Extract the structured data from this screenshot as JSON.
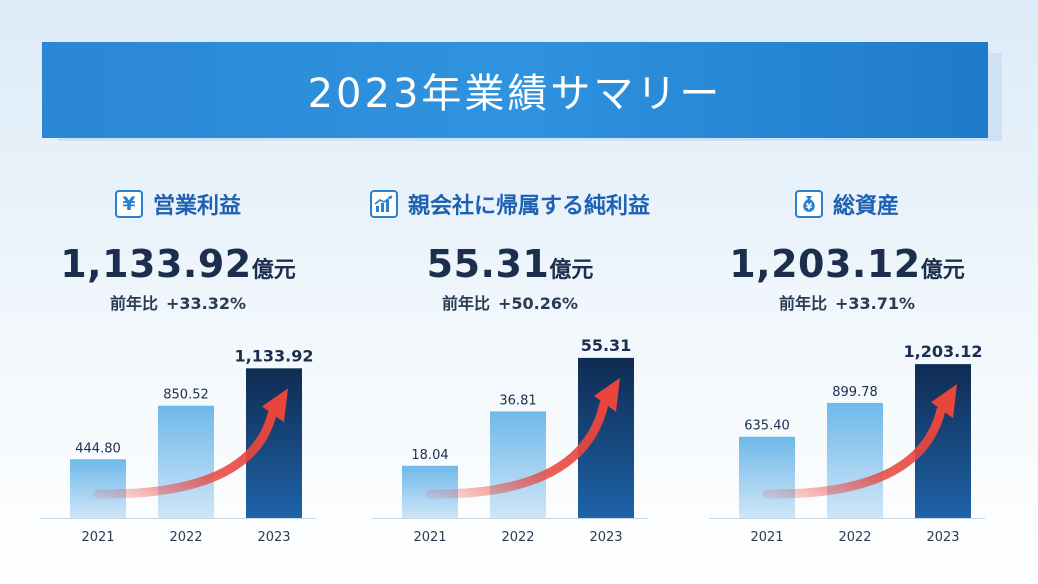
{
  "header": {
    "title": "2023年業績サマリー"
  },
  "chart_data": [
    {
      "type": "bar",
      "title": "営業利益",
      "icon": "yen-icon",
      "icon_glyph": "¥",
      "headline_value": "1,133.92",
      "unit": "億元",
      "yoy_label": "前年比",
      "yoy_value": "+33.32%",
      "categories": [
        "2021",
        "2022",
        "2023"
      ],
      "values": [
        444.8,
        850.52,
        1133.92
      ],
      "value_labels": [
        "444.80",
        "850.52",
        "1,133.92"
      ],
      "ylim": [
        0,
        1250
      ]
    },
    {
      "type": "bar",
      "title": "親会社に帰属する純利益",
      "icon": "growth-chart-icon",
      "icon_glyph": "",
      "headline_value": "55.31",
      "unit": "億元",
      "yoy_label": "前年比",
      "yoy_value": "+50.26%",
      "categories": [
        "2021",
        "2022",
        "2023"
      ],
      "values": [
        18.04,
        36.81,
        55.31
      ],
      "value_labels": [
        "18.04",
        "36.81",
        "55.31"
      ],
      "ylim": [
        0,
        57
      ]
    },
    {
      "type": "bar",
      "title": "総資産",
      "icon": "money-bag-icon",
      "icon_glyph": "¥",
      "headline_value": "1,203.12",
      "unit": "億元",
      "yoy_label": "前年比",
      "yoy_value": "+33.71%",
      "categories": [
        "2021",
        "2022",
        "2023"
      ],
      "values": [
        635.4,
        899.78,
        1203.12
      ],
      "value_labels": [
        "635.40",
        "899.78",
        "1,203.12"
      ],
      "ylim": [
        0,
        1290
      ]
    }
  ],
  "colors": {
    "banner": "#2b87d4",
    "panel_title": "#1e61b3",
    "bar_light_top": "#6fb8ea",
    "bar_light_bottom": "#cfe6f7",
    "bar_dark_top": "#0f2b52",
    "bar_dark_bottom": "#1f63a8",
    "arrow": "#e8463d"
  }
}
